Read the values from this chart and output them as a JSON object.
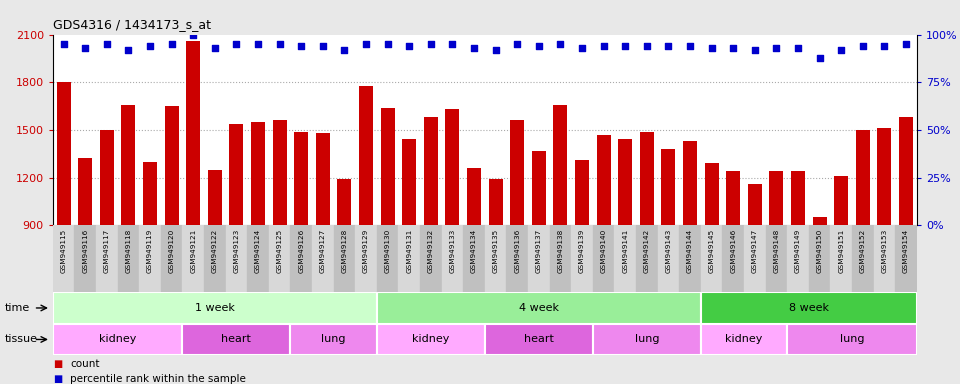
{
  "title": "GDS4316 / 1434173_s_at",
  "samples": [
    "GSM949115",
    "GSM949116",
    "GSM949117",
    "GSM949118",
    "GSM949119",
    "GSM949120",
    "GSM949121",
    "GSM949122",
    "GSM949123",
    "GSM949124",
    "GSM949125",
    "GSM949126",
    "GSM949127",
    "GSM949128",
    "GSM949129",
    "GSM949130",
    "GSM949131",
    "GSM949132",
    "GSM949133",
    "GSM949134",
    "GSM949135",
    "GSM949136",
    "GSM949137",
    "GSM949138",
    "GSM949139",
    "GSM949140",
    "GSM949141",
    "GSM949142",
    "GSM949143",
    "GSM949144",
    "GSM949145",
    "GSM949146",
    "GSM949147",
    "GSM949148",
    "GSM949149",
    "GSM949150",
    "GSM949151",
    "GSM949152",
    "GSM949153",
    "GSM949154"
  ],
  "bar_values": [
    1800,
    1320,
    1500,
    1660,
    1300,
    1650,
    2060,
    1250,
    1540,
    1550,
    1560,
    1490,
    1480,
    1190,
    1780,
    1640,
    1440,
    1580,
    1630,
    1260,
    1190,
    1560,
    1370,
    1660,
    1310,
    1470,
    1440,
    1490,
    1380,
    1430,
    1290,
    1240,
    1160,
    1240,
    1240,
    950,
    1210,
    1500,
    1510,
    1580
  ],
  "percentile_values": [
    95,
    93,
    95,
    92,
    94,
    95,
    100,
    93,
    95,
    95,
    95,
    94,
    94,
    92,
    95,
    95,
    94,
    95,
    95,
    93,
    92,
    95,
    94,
    95,
    93,
    94,
    94,
    94,
    94,
    94,
    93,
    93,
    92,
    93,
    93,
    88,
    92,
    94,
    94,
    95
  ],
  "bar_color": "#cc0000",
  "dot_color": "#0000cc",
  "ymin": 900,
  "ymax": 2100,
  "yticks": [
    900,
    1200,
    1500,
    1800,
    2100
  ],
  "y2min": 0,
  "y2max": 100,
  "y2ticks": [
    0,
    25,
    50,
    75,
    100
  ],
  "time_groups": [
    {
      "label": "1 week",
      "start": 0,
      "end": 14,
      "color": "#ccffcc"
    },
    {
      "label": "4 week",
      "start": 15,
      "end": 29,
      "color": "#99ee99"
    },
    {
      "label": "8 week",
      "start": 30,
      "end": 39,
      "color": "#44cc44"
    }
  ],
  "tissue_colors": {
    "kidney": "#ffaaff",
    "heart": "#dd66dd",
    "lung": "#ee88ee"
  },
  "tissue_groups": [
    {
      "label": "kidney",
      "start": 0,
      "end": 5
    },
    {
      "label": "heart",
      "start": 6,
      "end": 10
    },
    {
      "label": "lung",
      "start": 11,
      "end": 14
    },
    {
      "label": "kidney",
      "start": 15,
      "end": 19
    },
    {
      "label": "heart",
      "start": 20,
      "end": 24
    },
    {
      "label": "lung",
      "start": 25,
      "end": 29
    },
    {
      "label": "kidney",
      "start": 30,
      "end": 33
    },
    {
      "label": "lung",
      "start": 34,
      "end": 39
    }
  ],
  "bg_color": "#e8e8e8",
  "plot_bg": "#ffffff",
  "grid_color": "#aaaaaa",
  "xtick_bg_even": "#d8d8d8",
  "xtick_bg_odd": "#c0c0c0"
}
